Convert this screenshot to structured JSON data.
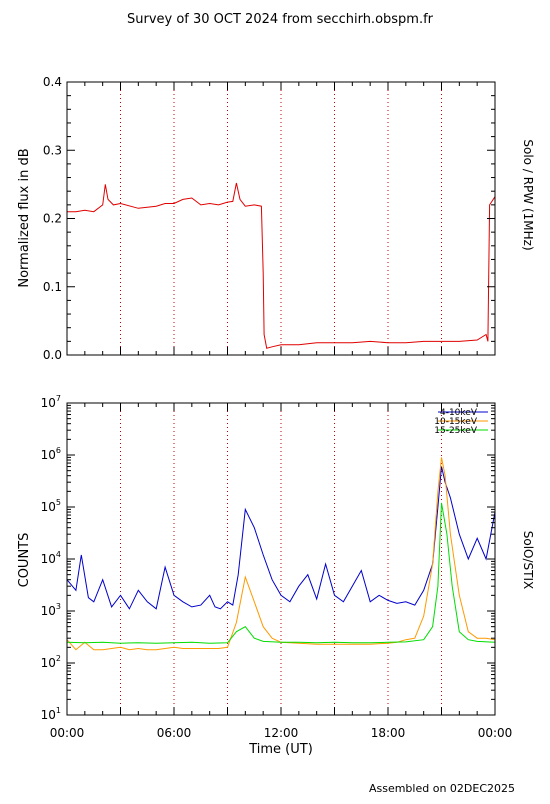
{
  "page": {
    "title": "Survey of 30 OCT 2024 from secchirh.obspm.fr",
    "footer": "Assembled on 02DEC2025",
    "xlabel": "Time (UT)",
    "xticks": [
      "00:00",
      "06:00",
      "12:00",
      "18:00",
      "00:00"
    ]
  },
  "chart_data": [
    {
      "type": "line",
      "instrument_label": "Solo / RPW (1MHz)",
      "ylabel": "Normalized flux in dB",
      "xlim": [
        0,
        24
      ],
      "ylim": [
        0,
        0.4
      ],
      "yticks": [
        "0.0",
        "0.1",
        "0.2",
        "0.3",
        "0.4"
      ],
      "dotted_time_markers": [
        3,
        6,
        9,
        12,
        15,
        18,
        21
      ],
      "grid": false,
      "series": [
        {
          "color": "#e00000",
          "x": [
            0,
            0.5,
            1.0,
            1.5,
            2.0,
            2.15,
            2.3,
            2.6,
            3.0,
            4.0,
            5.0,
            5.5,
            6.0,
            6.5,
            7.0,
            7.5,
            8.0,
            8.5,
            9.0,
            9.3,
            9.5,
            9.7,
            10.0,
            10.5,
            10.9,
            11.0,
            11.05,
            11.2,
            11.5,
            12.0,
            13.0,
            14.0,
            15.0,
            16.0,
            17.0,
            18.0,
            19.0,
            20.0,
            21.0,
            21.5,
            22.0,
            23.0,
            23.5,
            23.6,
            23.7,
            24.0
          ],
          "values": [
            0.21,
            0.21,
            0.212,
            0.21,
            0.22,
            0.25,
            0.228,
            0.22,
            0.222,
            0.215,
            0.218,
            0.222,
            0.222,
            0.228,
            0.23,
            0.22,
            0.222,
            0.22,
            0.224,
            0.225,
            0.252,
            0.228,
            0.218,
            0.22,
            0.218,
            0.12,
            0.03,
            0.01,
            0.012,
            0.015,
            0.015,
            0.018,
            0.018,
            0.018,
            0.02,
            0.018,
            0.018,
            0.02,
            0.02,
            0.02,
            0.02,
            0.022,
            0.03,
            0.02,
            0.22,
            0.232
          ]
        }
      ]
    },
    {
      "type": "line",
      "instrument_label": "SolO/STIX",
      "ylabel": "COUNTS",
      "yscale": "log",
      "xlim": [
        0,
        24
      ],
      "ylim": [
        10,
        10000000
      ],
      "ytick_exponents": [
        "1",
        "2",
        "3",
        "4",
        "5",
        "6",
        "7"
      ],
      "dotted_time_markers": [
        3,
        6,
        9,
        12,
        15,
        18,
        21
      ],
      "grid": false,
      "legend_position": "top-right",
      "series": [
        {
          "name": "4-10keV",
          "color": "#0000cc",
          "x": [
            0,
            0.5,
            0.8,
            1.2,
            1.5,
            2.0,
            2.5,
            3.0,
            3.5,
            4.0,
            4.5,
            5.0,
            5.5,
            6.0,
            6.5,
            7.0,
            7.5,
            8.0,
            8.3,
            8.6,
            9.0,
            9.3,
            9.6,
            10.0,
            10.5,
            11.0,
            11.5,
            12.0,
            12.5,
            13.0,
            13.5,
            14.0,
            14.5,
            15.0,
            15.5,
            16.0,
            16.5,
            17.0,
            17.5,
            18.0,
            18.5,
            19.0,
            19.5,
            20.0,
            20.5,
            20.8,
            21.0,
            21.2,
            21.5,
            22.0,
            22.5,
            23.0,
            23.5,
            24.0
          ],
          "values": [
            4000,
            2500,
            12000,
            1800,
            1500,
            4000,
            1200,
            2000,
            1100,
            2500,
            1500,
            1100,
            7000,
            2000,
            1500,
            1200,
            1300,
            2000,
            1200,
            1100,
            1500,
            1300,
            5000,
            90000,
            40000,
            12000,
            4000,
            2000,
            1500,
            3000,
            5000,
            1700,
            8000,
            2000,
            1500,
            3000,
            6000,
            1500,
            2000,
            1600,
            1400,
            1500,
            1300,
            2500,
            8000,
            100000,
            600000,
            300000,
            150000,
            30000,
            10000,
            25000,
            10000,
            80000
          ]
        },
        {
          "name": "10-15keV",
          "color": "#ff9900",
          "x": [
            0,
            0.5,
            1.0,
            1.5,
            2.0,
            2.5,
            3.0,
            3.5,
            4.0,
            4.5,
            5.0,
            5.5,
            6.0,
            6.5,
            7.0,
            7.5,
            8.0,
            8.5,
            9.0,
            9.5,
            10.0,
            10.5,
            11.0,
            11.5,
            12.0,
            13.0,
            14.0,
            15.0,
            16.0,
            17.0,
            18.0,
            18.5,
            19.0,
            19.5,
            20.0,
            20.5,
            20.8,
            21.0,
            21.2,
            21.5,
            22.0,
            22.5,
            23.0,
            23.5,
            24.0
          ],
          "values": [
            280,
            180,
            250,
            180,
            180,
            190,
            200,
            180,
            190,
            180,
            180,
            190,
            200,
            190,
            190,
            190,
            190,
            190,
            200,
            600,
            4500,
            1500,
            500,
            300,
            250,
            240,
            230,
            230,
            230,
            230,
            240,
            250,
            280,
            300,
            800,
            8000,
            200000,
            900000,
            400000,
            30000,
            2000,
            400,
            300,
            300,
            280
          ]
        },
        {
          "name": "15-25keV",
          "color": "#00dd00",
          "x": [
            0,
            1.0,
            2.0,
            3.0,
            4.0,
            5.0,
            6.0,
            7.0,
            8.0,
            9.0,
            9.5,
            10.0,
            10.5,
            11.0,
            12.0,
            13.0,
            14.0,
            15.0,
            16.0,
            17.0,
            18.0,
            19.0,
            20.0,
            20.5,
            20.8,
            21.0,
            21.3,
            21.6,
            22.0,
            22.5,
            23.0,
            24.0
          ],
          "values": [
            250,
            245,
            250,
            240,
            245,
            240,
            245,
            250,
            240,
            245,
            400,
            500,
            300,
            260,
            250,
            250,
            245,
            250,
            245,
            245,
            250,
            255,
            280,
            500,
            3000,
            120000,
            30000,
            3000,
            400,
            280,
            260,
            250
          ]
        }
      ]
    }
  ]
}
